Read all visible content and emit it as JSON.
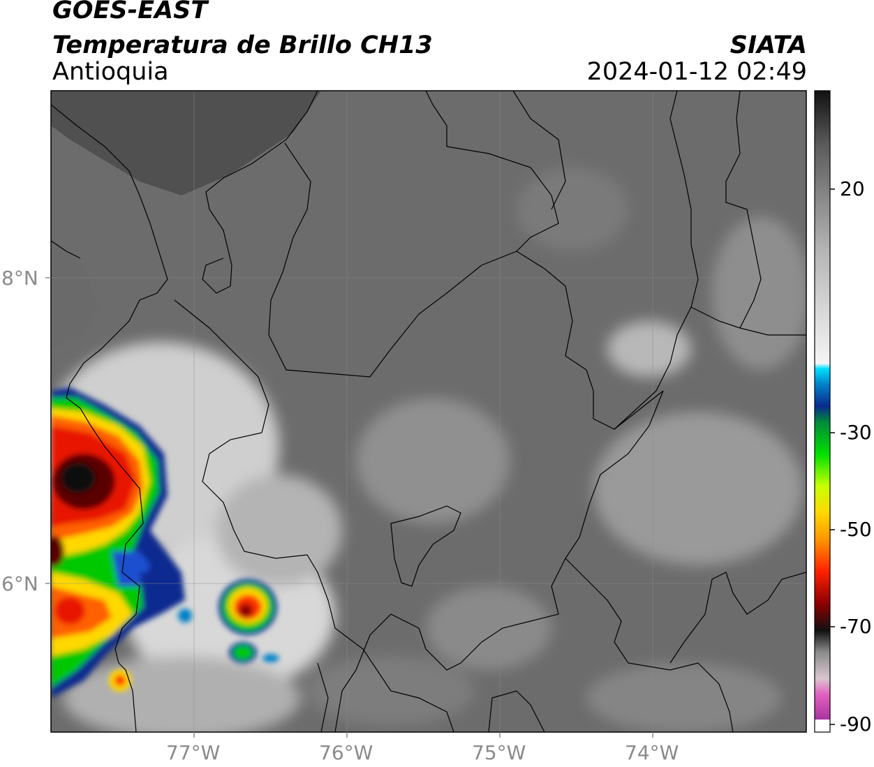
{
  "header": {
    "satellite": "GOES-EAST",
    "product": "Temperatura de Brillo CH13",
    "region": "Antioquia",
    "agency": "SIATA",
    "datetime": "2024-01-12 02:49"
  },
  "axes": {
    "x_ticks": [
      "77°W",
      "76°W",
      "75°W",
      "74°W"
    ],
    "y_ticks": [
      "8°N",
      "6°N"
    ]
  },
  "colorbar": {
    "ticks": [
      "20",
      "-30",
      "-50",
      "-70",
      "-90"
    ],
    "stops": [
      {
        "value": -90,
        "color": "#8b1f8f"
      },
      {
        "value": -83,
        "color": "#e45fc0"
      },
      {
        "value": -80,
        "color": "#d9c6cf"
      },
      {
        "value": -75,
        "color": "#8a8a8a"
      },
      {
        "value": -71,
        "color": "#111111"
      },
      {
        "value": -66,
        "color": "#8b0000"
      },
      {
        "value": -60,
        "color": "#ff2000"
      },
      {
        "value": -54,
        "color": "#ff9500"
      },
      {
        "value": -49,
        "color": "#ffd800"
      },
      {
        "value": -44,
        "color": "#c8ff00"
      },
      {
        "value": -38,
        "color": "#00e000"
      },
      {
        "value": -32,
        "color": "#008a3a"
      },
      {
        "value": -29,
        "color": "#0a2a90"
      },
      {
        "value": -25,
        "color": "#0080c8"
      },
      {
        "value": -22,
        "color": "#00e0ff"
      },
      {
        "value": -21,
        "color": "#f5f5f5"
      },
      {
        "value": 0,
        "color": "#b5b5b5"
      },
      {
        "value": 20,
        "color": "#5a5a5a"
      },
      {
        "value": 30,
        "color": "#111111"
      }
    ]
  },
  "colors": {
    "land_gray": "#6e6e6e",
    "sea_gray": "#5c5c5c",
    "border": "#000000"
  }
}
